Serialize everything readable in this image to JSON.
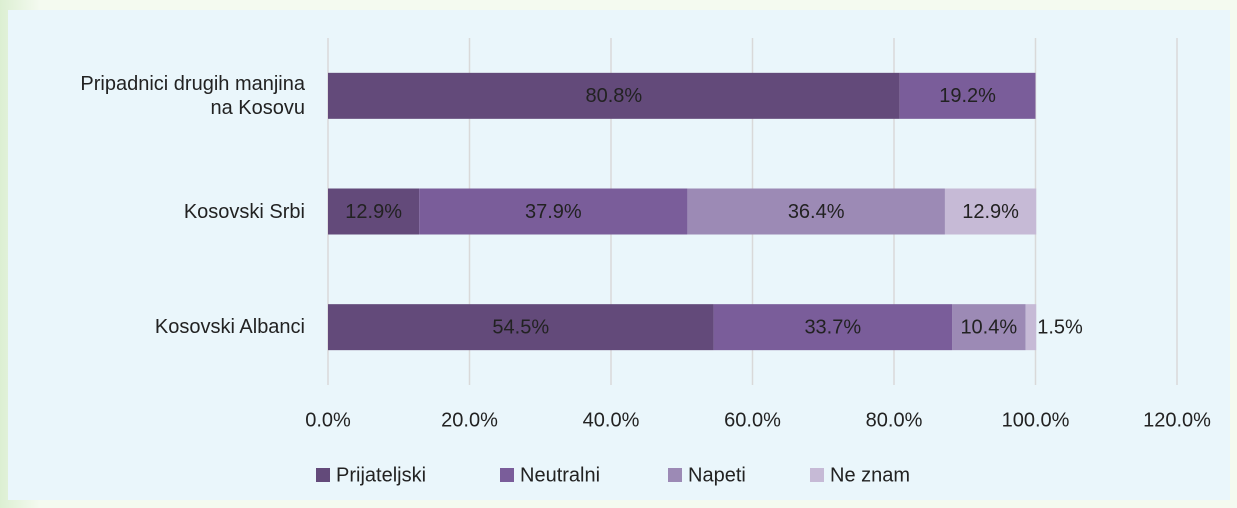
{
  "chart_data": {
    "type": "stacked_bar_horizontal",
    "categories": [
      "Pripadnici drugih manjina na Kosovu",
      "Kosovski Srbi",
      "Kosovski Albanci"
    ],
    "series": [
      {
        "name": "Prijateljski",
        "color": "#634a7a",
        "values": [
          80.8,
          12.9,
          54.5
        ],
        "value_labels": [
          "80.8%",
          "12.9%",
          "54.5%"
        ]
      },
      {
        "name": "Neutralni",
        "color": "#7a5d9a",
        "values": [
          19.2,
          37.9,
          33.7
        ],
        "value_labels": [
          "19.2%",
          "37.9%",
          "33.7%"
        ]
      },
      {
        "name": "Napeti",
        "color": "#9c8ab5",
        "values": [
          null,
          36.4,
          10.4
        ],
        "value_labels": [
          null,
          "36.4%",
          "10.4%"
        ]
      },
      {
        "name": "Ne znam",
        "color": "#c6bad6",
        "values": [
          null,
          12.9,
          1.5
        ],
        "value_labels": [
          null,
          "12.9%",
          "1.5%"
        ]
      }
    ],
    "xlim": [
      0,
      120
    ],
    "xticks": [
      {
        "value": 0,
        "label": "0.0%"
      },
      {
        "value": 20,
        "label": "20.0%"
      },
      {
        "value": 40,
        "label": "40.0%"
      },
      {
        "value": 60,
        "label": "60.0%"
      },
      {
        "value": 80,
        "label": "80.0%"
      },
      {
        "value": 100,
        "label": "100.0%"
      },
      {
        "value": 120,
        "label": "120.0%"
      }
    ],
    "grid": true,
    "legend": "bottom"
  }
}
